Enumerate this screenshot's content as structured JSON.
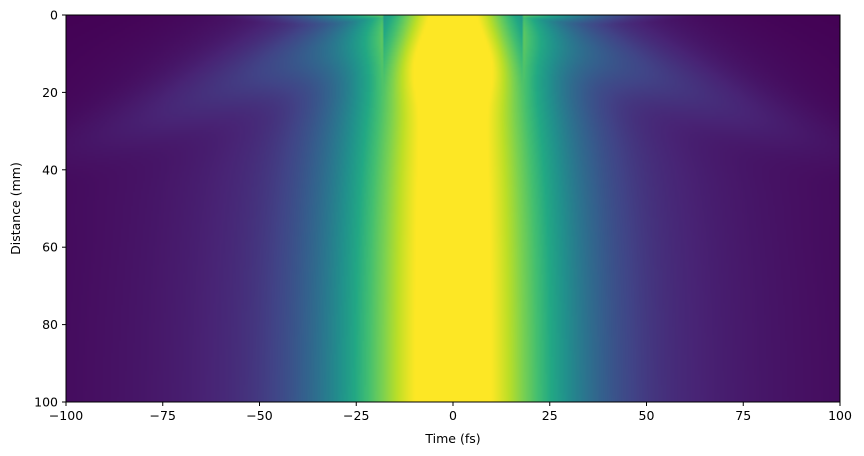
{
  "chart_data": {
    "type": "heatmap",
    "title": "",
    "xlabel": "Time (fs)",
    "ylabel": "Distance (mm)",
    "xlim": [
      -100,
      100
    ],
    "ylim": [
      100,
      0
    ],
    "y_inverted": true,
    "colormap": "viridis",
    "grid": false,
    "colorbar": false,
    "x_ticks": [
      -100,
      -75,
      -50,
      -25,
      0,
      25,
      50,
      75,
      100
    ],
    "x_tick_labels": [
      "−100",
      "−75",
      "−50",
      "−25",
      "0",
      "25",
      "50",
      "75",
      "100"
    ],
    "y_ticks": [
      0,
      20,
      40,
      60,
      80,
      100
    ],
    "y_tick_labels": [
      "0",
      "20",
      "40",
      "60",
      "80",
      "100"
    ],
    "description_values": {
      "central_peak_time_fs": 0,
      "peak_distance_mm": 10,
      "pulse_width_near_start_fs": 30,
      "pulse_width_far_fs": 45
    }
  }
}
